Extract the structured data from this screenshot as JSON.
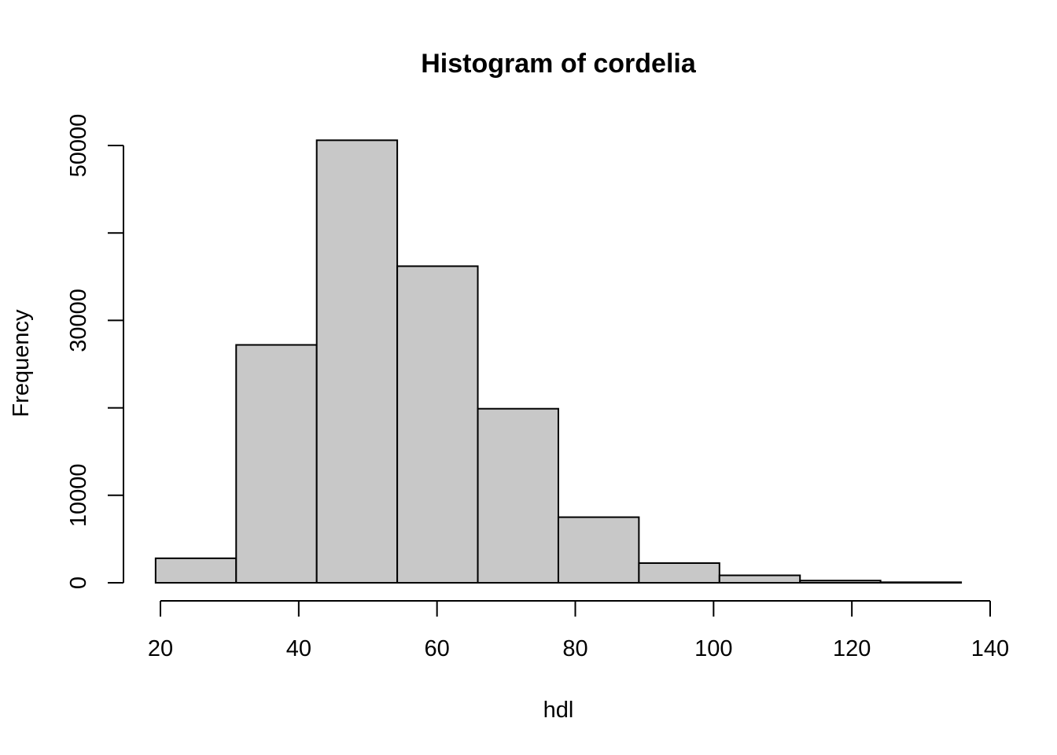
{
  "chart_data": {
    "type": "bar",
    "title": "Histogram of cordelia",
    "xlabel": "hdl",
    "ylabel": "Frequency",
    "bar_color": "#c8c8c8",
    "border_color": "#000000",
    "bins": [
      {
        "x0": 19.3,
        "x1": 30.95,
        "count": 2800
      },
      {
        "x0": 30.95,
        "x1": 42.6,
        "count": 27200
      },
      {
        "x0": 42.6,
        "x1": 54.25,
        "count": 50600
      },
      {
        "x0": 54.25,
        "x1": 65.9,
        "count": 36200
      },
      {
        "x0": 65.9,
        "x1": 77.55,
        "count": 19900
      },
      {
        "x0": 77.55,
        "x1": 89.2,
        "count": 7500
      },
      {
        "x0": 89.2,
        "x1": 100.85,
        "count": 2250
      },
      {
        "x0": 100.85,
        "x1": 112.5,
        "count": 850
      },
      {
        "x0": 112.5,
        "x1": 124.15,
        "count": 250
      },
      {
        "x0": 124.15,
        "x1": 135.8,
        "count": 60
      }
    ],
    "x_ticks": [
      20,
      40,
      60,
      80,
      100,
      120,
      140
    ],
    "y_ticks": [
      0,
      10000,
      20000,
      30000,
      40000,
      50000
    ],
    "y_tick_labels": [
      "0",
      "10000",
      "",
      "30000",
      "",
      "50000"
    ],
    "xlim": [
      20,
      140
    ],
    "ylim": [
      0,
      50000
    ],
    "grid": false,
    "legend": "none"
  }
}
